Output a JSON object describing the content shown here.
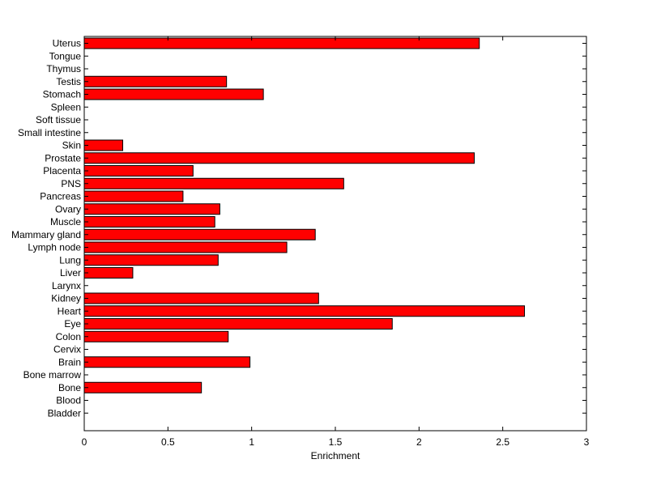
{
  "chart_data": {
    "type": "bar",
    "orientation": "horizontal",
    "categories": [
      "Bladder",
      "Blood",
      "Bone",
      "Bone marrow",
      "Brain",
      "Cervix",
      "Colon",
      "Eye",
      "Heart",
      "Kidney",
      "Larynx",
      "Liver",
      "Lung",
      "Lymph node",
      "Mammary gland",
      "Muscle",
      "Ovary",
      "Pancreas",
      "PNS",
      "Placenta",
      "Prostate",
      "Skin",
      "Small intestine",
      "Soft tissue",
      "Spleen",
      "Stomach",
      "Testis",
      "Thymus",
      "Tongue",
      "Uterus"
    ],
    "values": [
      0,
      0,
      0.7,
      0,
      0.99,
      0,
      0.86,
      1.84,
      2.63,
      1.4,
      0,
      0.29,
      0.8,
      1.21,
      1.38,
      0.78,
      0.81,
      0.59,
      1.55,
      0.65,
      2.33,
      0.23,
      0,
      0,
      0,
      1.07,
      0.85,
      0,
      0,
      2.36
    ],
    "bar_color": "#ff0000",
    "xlabel": "Enrichment",
    "ylabel": "",
    "title": "",
    "xlim": [
      0,
      3
    ],
    "xticks": [
      "0",
      "0.5",
      "1",
      "1.5",
      "2",
      "2.5",
      "3"
    ],
    "grid": false,
    "legend": "none"
  }
}
